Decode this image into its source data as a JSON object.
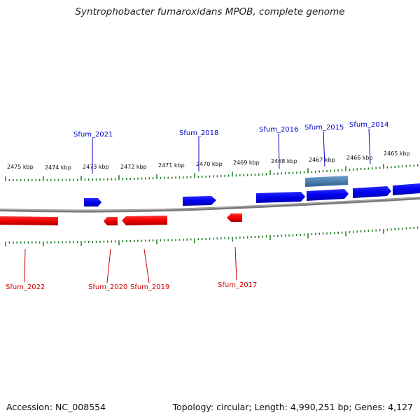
{
  "title": "Syntrophobacter fumaroxidans MPOB, complete genome",
  "footer": {
    "accession": "Accession: NC_008554",
    "topology": "Topology: circular; Length: 4,990,251 bp; Genes: 4,127"
  },
  "colors": {
    "forward_gene": "#0000ee",
    "reverse_gene": "#ee0000",
    "highlight_gene": "#4a86b8",
    "backbone": "#7a7a7a",
    "tick": "#1a7a1a",
    "forward_label": "#0000cc",
    "reverse_label": "#cc0000"
  },
  "scale_labels": [
    "2475 kbp",
    "2474 kbp",
    "2473 kbp",
    "2472 kbp",
    "2471 kbp",
    "2470 kbp",
    "2469 kbp",
    "2468 kbp",
    "2467 kbp",
    "2466 kbp",
    "2465 kbp"
  ],
  "forward_genes": [
    {
      "label": "Sfum_2021"
    },
    {
      "label": "Sfum_2018"
    },
    {
      "label": "Sfum_2016"
    },
    {
      "label": "Sfum_2015"
    },
    {
      "label": "Sfum_2014"
    }
  ],
  "reverse_genes": [
    {
      "label": "Sfum_2022"
    },
    {
      "label": "Sfum_2020"
    },
    {
      "label": "Sfum_2019"
    },
    {
      "label": "Sfum_2017"
    }
  ]
}
